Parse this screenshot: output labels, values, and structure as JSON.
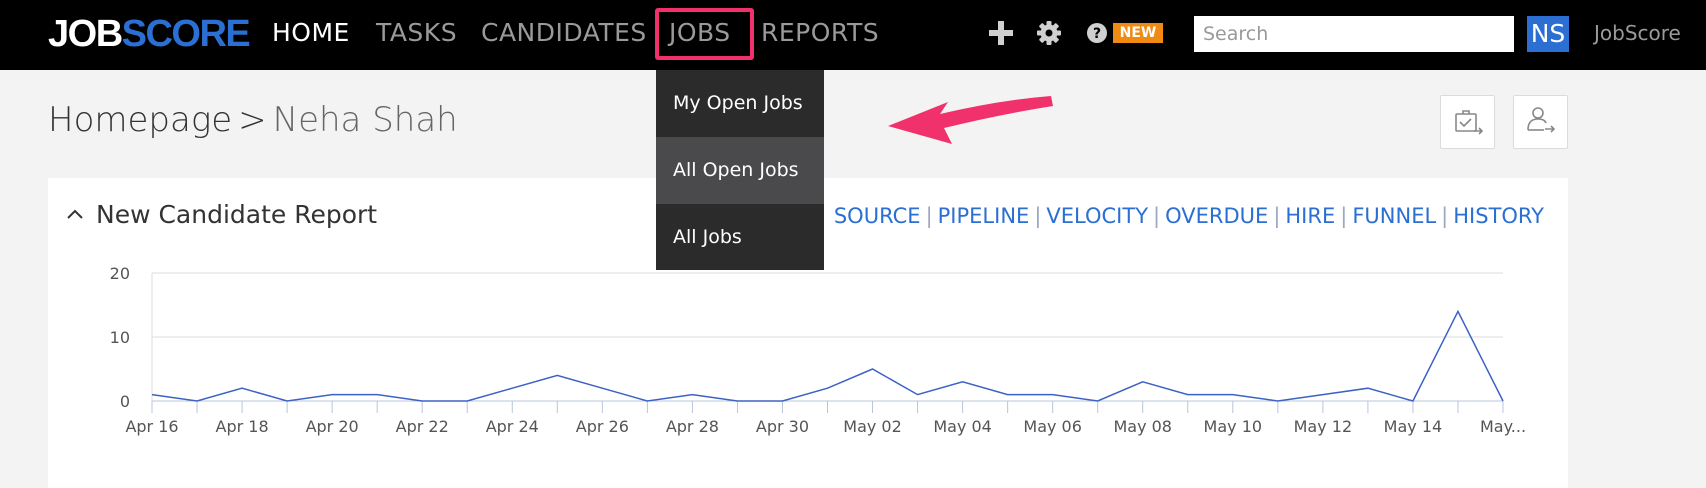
{
  "logo": {
    "job": "JOB",
    "score": "SCORE"
  },
  "nav": {
    "items": [
      {
        "label": "HOME",
        "id": "home",
        "active": true
      },
      {
        "label": "TASKS",
        "id": "tasks",
        "active": false
      },
      {
        "label": "CANDIDATES",
        "id": "candidates",
        "active": false
      },
      {
        "label": "JOBS",
        "id": "jobs",
        "active": false
      },
      {
        "label": "REPORTS",
        "id": "reports",
        "active": false
      }
    ],
    "new_badge": "NEW",
    "icons": [
      "plus-icon",
      "gear-icon",
      "help-icon"
    ]
  },
  "search": {
    "placeholder": "Search",
    "value": ""
  },
  "user": {
    "initials": "NS",
    "account_name": "JobScore"
  },
  "breadcrumb": {
    "root": "Homepage",
    "separator": ">",
    "current": "Neha Shah"
  },
  "jobs_menu": {
    "items": [
      {
        "label": "My Open Jobs"
      },
      {
        "label": "All Open Jobs"
      },
      {
        "label": "All Jobs"
      }
    ],
    "hovered_index": 1
  },
  "panel": {
    "title": "New Candidate Report",
    "links": [
      "SOURCE",
      "PIPELINE",
      "VELOCITY",
      "OVERDUE",
      "HIRE",
      "FUNNEL",
      "HISTORY"
    ]
  },
  "colors": {
    "accent": "#2a6fd1",
    "highlight": "#f0316b",
    "badge": "#f08a12",
    "line": "#3b62c4"
  },
  "chart_data": {
    "type": "line",
    "y_ticks": [
      0,
      10,
      20
    ],
    "ylim": [
      0,
      20
    ],
    "x_tick_labels": [
      "Apr 16",
      "Apr 18",
      "Apr 20",
      "Apr 22",
      "Apr 24",
      "Apr 26",
      "Apr 28",
      "Apr 30",
      "May 02",
      "May 04",
      "May 06",
      "May 08",
      "May 10",
      "May 12",
      "May 14",
      "May..."
    ],
    "x": [
      "Apr 16",
      "Apr 17",
      "Apr 18",
      "Apr 19",
      "Apr 20",
      "Apr 21",
      "Apr 22",
      "Apr 23",
      "Apr 24",
      "Apr 25",
      "Apr 26",
      "Apr 27",
      "Apr 28",
      "Apr 29",
      "Apr 30",
      "May 01",
      "May 02",
      "May 03",
      "May 04",
      "May 05",
      "May 06",
      "May 07",
      "May 08",
      "May 09",
      "May 10",
      "May 11",
      "May 12",
      "May 13",
      "May 14",
      "May 15",
      "May 16"
    ],
    "series": [
      {
        "values": [
          1,
          0,
          2,
          0,
          1,
          1,
          0,
          0,
          2,
          4,
          2,
          0,
          1,
          0,
          0,
          2,
          5,
          1,
          3,
          1,
          1,
          0,
          3,
          1,
          1,
          0,
          1,
          2,
          0,
          14,
          0
        ]
      }
    ],
    "grid": true
  }
}
